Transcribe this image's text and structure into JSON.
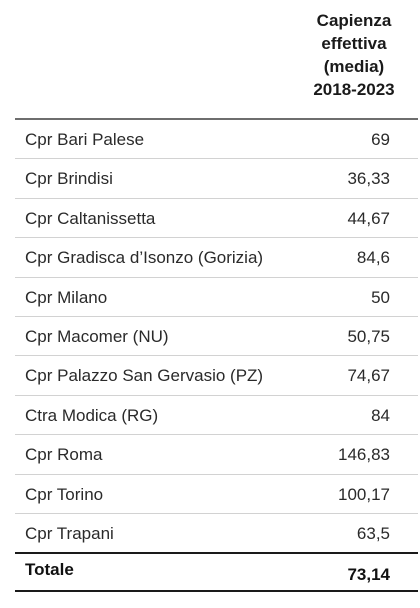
{
  "table": {
    "header": {
      "column_title_lines": [
        "Capienza",
        "effettiva",
        "(media)",
        "2018-2023"
      ]
    },
    "rows": [
      {
        "name": "Cpr Bari Palese",
        "value": "69"
      },
      {
        "name": "Cpr Brindisi",
        "value": "36,33"
      },
      {
        "name": "Cpr Caltanissetta",
        "value": "44,67"
      },
      {
        "name": "Cpr Gradisca d’Isonzo (Gorizia)",
        "value": "84,6"
      },
      {
        "name": "Cpr Milano",
        "value": "50"
      },
      {
        "name": "Cpr Macomer (NU)",
        "value": "50,75"
      },
      {
        "name": "Cpr Palazzo San Gervasio (PZ)",
        "value": "74,67"
      },
      {
        "name": "Ctra Modica (RG)",
        "value": "84"
      },
      {
        "name": "Cpr Roma",
        "value": "146,83"
      },
      {
        "name": "Cpr Torino",
        "value": "100,17"
      },
      {
        "name": "Cpr Trapani",
        "value": "63,5"
      }
    ],
    "total": {
      "label": "Totale",
      "value": "73,14"
    }
  }
}
